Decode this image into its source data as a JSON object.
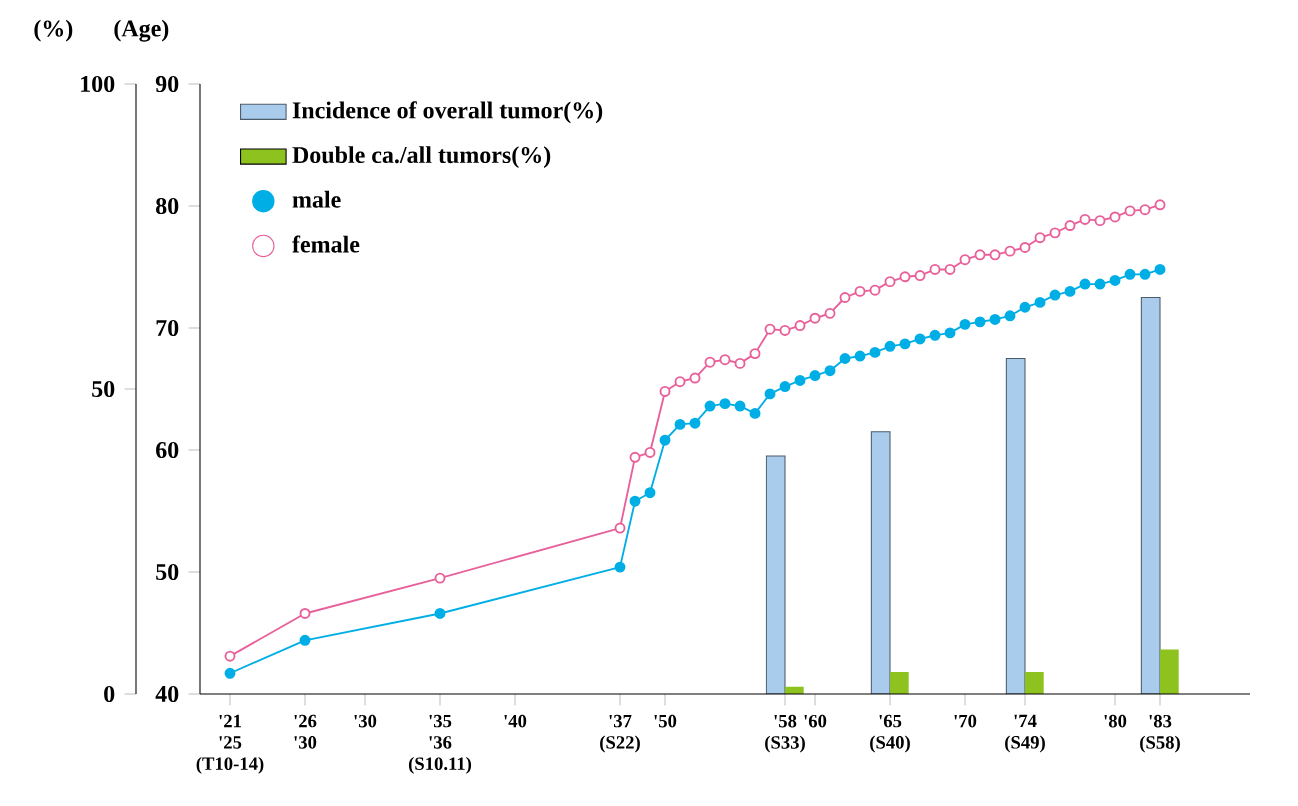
{
  "chart_data": {
    "type": "line",
    "ylabel": "(Age)",
    "y2label": "(%)",
    "legend": "top left",
    "xlim": [
      1919,
      1989
    ],
    "xticks": [
      {
        "value": 1921,
        "label": "'21 '25 (T10-14)"
      },
      {
        "value": 1926,
        "label": "'26 '30"
      },
      {
        "value": 1930,
        "label": "'30"
      },
      {
        "value": 1935,
        "label": "'35 '36 (S10.11)"
      },
      {
        "value": 1940,
        "label": "'40"
      },
      {
        "value": 1947,
        "label": "'37 (S22)"
      },
      {
        "value": 1950,
        "label": "'50"
      },
      {
        "value": 1958,
        "label": "'58 (S33)"
      },
      {
        "value": 1960,
        "label": "'60"
      },
      {
        "value": 1965,
        "label": "'65 (S40)"
      },
      {
        "value": 1970,
        "label": "'70"
      },
      {
        "value": 1974,
        "label": "'74 (S49)"
      },
      {
        "value": 1980,
        "label": "'80"
      },
      {
        "value": 1983,
        "label": "'83 (S58)"
      }
    ],
    "ylim": [
      40,
      90
    ],
    "yticks": [
      40,
      50,
      60,
      70,
      80,
      90
    ],
    "y2lim": [
      0,
      100
    ],
    "y2ticks": [
      0,
      50,
      100
    ],
    "series": [
      {
        "name": "Incidence of overall tumor(%)",
        "type": "bar",
        "axis": "y2",
        "color": "#a9cbec",
        "x": [
          1958,
          1965,
          1974,
          1983
        ],
        "values": [
          39,
          43,
          55,
          65
        ]
      },
      {
        "name": "Double ca./all tumors(%)",
        "type": "bar",
        "axis": "y2",
        "color": "#8dc21f",
        "x": [
          1958,
          1965,
          1974,
          1983
        ],
        "values": [
          1.2,
          3.6,
          3.6,
          7.3
        ]
      },
      {
        "name": "male",
        "marker": "circle",
        "color": "#00aee6",
        "x": [
          1921,
          1926,
          1935,
          1947,
          1948,
          1949,
          1950,
          1951,
          1952,
          1953,
          1954,
          1955,
          1956,
          1957,
          1958,
          1959,
          1960,
          1961,
          1962,
          1963,
          1964,
          1965,
          1966,
          1967,
          1968,
          1969,
          1970,
          1971,
          1972,
          1973,
          1974,
          1975,
          1976,
          1977,
          1978,
          1979,
          1980,
          1981,
          1982,
          1983
        ],
        "values": [
          41.7,
          44.4,
          46.6,
          50.4,
          55.8,
          56.5,
          60.8,
          62.1,
          62.2,
          63.6,
          63.8,
          63.6,
          63.0,
          64.6,
          65.2,
          65.7,
          66.1,
          66.5,
          67.5,
          67.7,
          68.0,
          68.5,
          68.7,
          69.1,
          69.4,
          69.6,
          70.3,
          70.5,
          70.7,
          71.0,
          71.7,
          72.1,
          72.7,
          73.0,
          73.6,
          73.6,
          73.9,
          74.4,
          74.4,
          74.8
        ]
      },
      {
        "name": "female",
        "marker": "circle",
        "color": "#e8609a",
        "x": [
          1921,
          1926,
          1935,
          1947,
          1948,
          1949,
          1950,
          1951,
          1952,
          1953,
          1954,
          1955,
          1956,
          1957,
          1958,
          1959,
          1960,
          1961,
          1962,
          1963,
          1964,
          1965,
          1966,
          1967,
          1968,
          1969,
          1970,
          1971,
          1972,
          1973,
          1974,
          1975,
          1976,
          1977,
          1978,
          1979,
          1980,
          1981,
          1982,
          1983
        ],
        "values": [
          43.1,
          46.6,
          49.5,
          53.6,
          59.4,
          59.8,
          64.8,
          65.6,
          65.9,
          67.2,
          67.4,
          67.1,
          67.9,
          69.9,
          69.8,
          70.2,
          70.8,
          71.2,
          72.5,
          73.0,
          73.1,
          73.8,
          74.2,
          74.3,
          74.8,
          74.8,
          75.6,
          76.0,
          76.0,
          76.3,
          76.6,
          77.4,
          77.8,
          78.4,
          78.9,
          78.8,
          79.1,
          79.6,
          79.7,
          80.1
        ]
      }
    ]
  }
}
